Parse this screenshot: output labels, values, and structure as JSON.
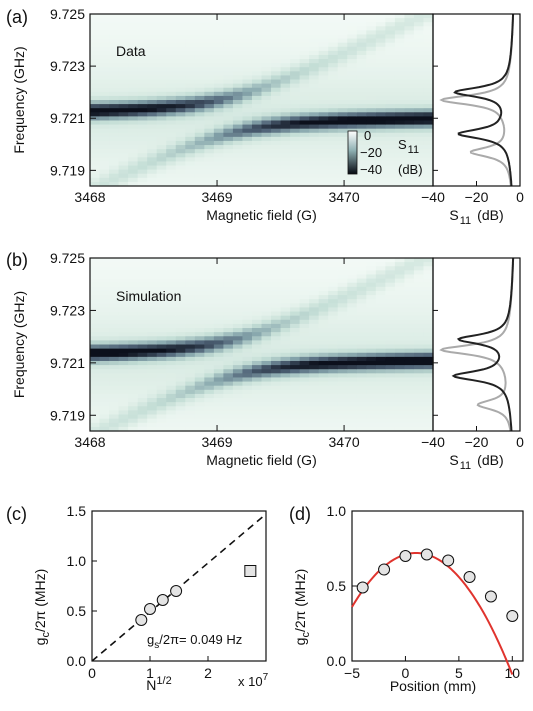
{
  "panels": {
    "a": {
      "tag": "(a)",
      "inset_label": "Data"
    },
    "b": {
      "tag": "(b)",
      "inset_label": "Simulation"
    },
    "c": {
      "tag": "(c)"
    },
    "d": {
      "tag": "(d)"
    }
  },
  "colorbar": {
    "ticks": [
      "0",
      "−20",
      "−40"
    ],
    "label_main": "S",
    "label_sub": "11",
    "unit": "(dB)"
  },
  "chart_data": [
    {
      "id": "a-map",
      "type": "heatmap",
      "xlabel": "Magnetic field (G)",
      "ylabel": "Frequency (GHz)",
      "xlim": [
        3468,
        3470.7
      ],
      "ylim": [
        9.7184,
        9.725
      ],
      "xticks": [
        3468,
        3469,
        3470
      ],
      "yticks": [
        9.719,
        9.721,
        9.723,
        9.725
      ],
      "colorbar_range_db": [
        -45,
        0
      ],
      "resonator_frequency_ghz": 9.7211,
      "spin_line": {
        "field_g": [
          3468,
          3470.7
        ],
        "freq_ghz": [
          9.7184,
          9.725
        ]
      },
      "coupling_mhz": 0.7
    },
    {
      "id": "a-trace",
      "type": "line",
      "xlabel_main": "S",
      "xlabel_sub": "11",
      "xlabel_unit": "(dB)",
      "xlim": [
        -40,
        0
      ],
      "xticks": [
        -40,
        -20,
        0
      ],
      "series": [
        {
          "color": "#222222",
          "dip_freqs_ghz": [
            9.722,
            9.7204
          ],
          "dip_depth_db": [
            -30,
            -28
          ]
        },
        {
          "color": "#aaaaaa",
          "dip_freqs_ghz": [
            9.7217,
            9.7197
          ],
          "dip_depth_db": [
            -36,
            -23
          ]
        }
      ]
    },
    {
      "id": "b-map",
      "type": "heatmap",
      "xlabel": "Magnetic field (G)",
      "ylabel": "Frequency (GHz)",
      "xlim": [
        3468,
        3470.7
      ],
      "ylim": [
        9.7184,
        9.725
      ],
      "xticks": [
        3468,
        3469,
        3470
      ],
      "yticks": [
        9.719,
        9.721,
        9.723,
        9.725
      ],
      "resonator_frequency_ghz": 9.7212,
      "spin_line": {
        "field_g": [
          3468,
          3470.7
        ],
        "freq_ghz": [
          9.7184,
          9.725
        ]
      },
      "coupling_mhz": 0.7
    },
    {
      "id": "b-trace",
      "type": "line",
      "xlabel_main": "S",
      "xlabel_sub": "11",
      "xlabel_unit": "(dB)",
      "xlim": [
        -40,
        0
      ],
      "xticks": [
        -40,
        -20,
        0
      ],
      "series": [
        {
          "color": "#222222",
          "dip_freqs_ghz": [
            9.7219,
            9.7205
          ],
          "dip_depth_db": [
            -28,
            -30
          ]
        },
        {
          "color": "#aaaaaa",
          "dip_freqs_ghz": [
            9.7215,
            9.7194
          ],
          "dip_depth_db": [
            -36,
            -20
          ]
        }
      ]
    },
    {
      "id": "c",
      "type": "scatter",
      "xlabel_main": "N",
      "xlabel_sup": "1/2",
      "x_multiplier": "x 10",
      "x_multiplier_exp": "7",
      "ylabel_main": "g",
      "ylabel_sub": "c",
      "ylabel_rest": "/2π (MHz)",
      "xlim": [
        0,
        3
      ],
      "ylim": [
        0,
        1.5
      ],
      "xticks": [
        0,
        1,
        2
      ],
      "yticks": [
        0,
        0.5,
        1.0,
        1.5
      ],
      "ytick_labels": [
        "0.0",
        "0.5",
        "1.0",
        "1.5"
      ],
      "points": {
        "x": [
          0.85,
          1.0,
          1.22,
          1.45
        ],
        "y": [
          0.41,
          0.52,
          0.61,
          0.7
        ]
      },
      "outlier": {
        "x": 2.73,
        "y": 0.9
      },
      "fit": {
        "slope": 0.49,
        "x": [
          0,
          3
        ],
        "style": "dashed"
      },
      "annotation_main": "g",
      "annotation_sub": "s",
      "annotation_rest": "/2π= 0.049 Hz"
    },
    {
      "id": "d",
      "type": "scatter",
      "xlabel": "Position (mm)",
      "ylabel_main": "g",
      "ylabel_sub": "c",
      "ylabel_rest": "/2π (MHz)",
      "xlim": [
        -5,
        11
      ],
      "ylim": [
        0,
        1.0
      ],
      "xticks": [
        -5,
        0,
        5,
        10
      ],
      "yticks": [
        0,
        0.5,
        1.0
      ],
      "ytick_labels": [
        "0.0",
        "0.5",
        "1.0"
      ],
      "points": {
        "x": [
          -4,
          -2,
          0,
          2,
          4,
          6,
          8,
          10
        ],
        "y": [
          0.49,
          0.61,
          0.7,
          0.71,
          0.67,
          0.56,
          0.43,
          0.3
        ]
      },
      "fit": {
        "color": "#e0342e",
        "center": 1.0,
        "peak": 0.72,
        "curvature": 0.01
      }
    }
  ]
}
